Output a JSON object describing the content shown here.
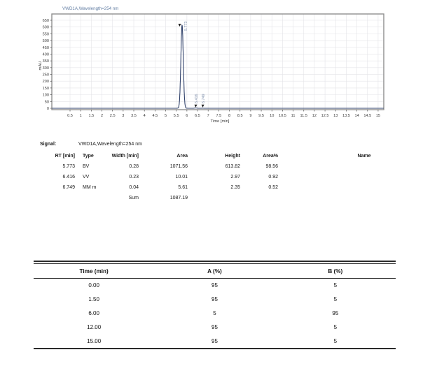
{
  "page": {
    "background": "#ffffff"
  },
  "chart_data": [
    {
      "type": "line",
      "name": "chromatogram",
      "title": "VWD1A,Wavelength=254 nm",
      "xlabel": "Time [min]",
      "ylabel": "mAU",
      "xlim": [
        0,
        15.3
      ],
      "ylim": [
        0,
        680
      ],
      "grid": true,
      "legend_position": "none",
      "x_ticks": [
        "0.5",
        "1",
        "1.5",
        "2",
        "2.5",
        "3",
        "3.5",
        "4",
        "4.5",
        "5",
        "5.5",
        "6",
        "6.5",
        "7",
        "7.5",
        "8",
        "8.5",
        "9",
        "9.5",
        "10",
        "10.5",
        "11",
        "11.5",
        "12",
        "12.5",
        "13",
        "13.5",
        "14",
        "14.5",
        "15"
      ],
      "y_ticks": [
        "0",
        "50",
        "100",
        "150",
        "200",
        "250",
        "300",
        "350",
        "400",
        "450",
        "500",
        "550",
        "600",
        "650"
      ],
      "baseline_mau": 0,
      "peaks": [
        {
          "rt_min": 5.773,
          "height_mau": 613.82,
          "width_min": 0.28,
          "label": "5.773"
        },
        {
          "rt_min": 6.416,
          "height_mau": 2.97,
          "width_min": 0.23,
          "label": "6.416"
        },
        {
          "rt_min": 6.749,
          "height_mau": 2.35,
          "width_min": 0.04,
          "label": "6.749"
        }
      ],
      "colors": {
        "trace": "#31426b",
        "title": "#647fa4",
        "peak_label": "#8091ad",
        "marker": "#1a1a1a",
        "grid": "#e4e4e8",
        "frame": "#8f8f8f",
        "axis_text": "#3a3a3a"
      }
    },
    {
      "type": "table",
      "name": "integration-results",
      "signal_label": "Signal:",
      "signal_value": "VWD1A,Wavelength=254 nm",
      "columns": [
        "RT [min]",
        "Type",
        "Width [min]",
        "Area",
        "Height",
        "Area%",
        "Name"
      ],
      "rows": [
        [
          "5.773",
          "BV",
          "0.28",
          "1071.56",
          "613.82",
          "98.56",
          ""
        ],
        [
          "6.416",
          "VV",
          "0.23",
          "10.01",
          "2.97",
          "0.92",
          ""
        ],
        [
          "6.749",
          "MM m",
          "0.04",
          "5.61",
          "2.35",
          "0.52",
          ""
        ],
        [
          "",
          "",
          "Sum",
          "1087.19",
          "",
          "",
          ""
        ]
      ]
    },
    {
      "type": "table",
      "name": "gradient-program",
      "columns": [
        "Time (min)",
        "A (%)",
        "B (%)"
      ],
      "rows": [
        [
          "0.00",
          "95",
          "5"
        ],
        [
          "1.50",
          "95",
          "5"
        ],
        [
          "6.00",
          "5",
          "95"
        ],
        [
          "12.00",
          "95",
          "5"
        ],
        [
          "15.00",
          "95",
          "5"
        ]
      ]
    }
  ]
}
